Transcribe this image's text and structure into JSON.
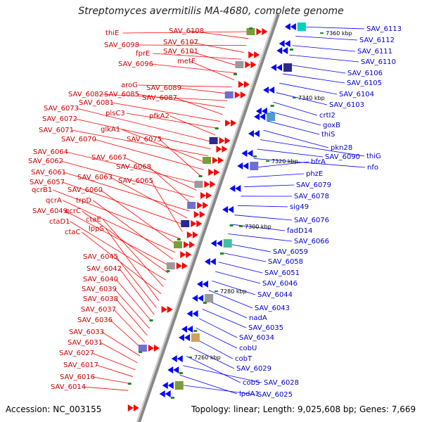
{
  "title": "Streptomyces avermitilis MA-4680, complete genome",
  "footer": {
    "accession": "Accession: NC_003155",
    "topology": "Topology: linear; Length: 9,025,608 bp; Genes: 7,669"
  },
  "scale_labels": [
    "7360 kbp",
    "7340 kbp",
    "7320 kbp",
    "7300 kbp",
    "7280 kbp",
    "7260 kbp"
  ],
  "left_labels": [
    "thiE",
    "SAV_6108",
    "SAV_6098",
    "SAV_6107",
    "fprE",
    "SAV_6101",
    "SAV_6096",
    "metF",
    "aroG",
    "SAV_6089",
    "SAV_6082",
    "SAV_6085",
    "SAV_6087",
    "SAV_6081",
    "plsC3",
    "pfkA2",
    "SAV_6073",
    "SAV_6072",
    "SAV_6071",
    "glkA1",
    "SAV_6070",
    "SAV_6075",
    "SAV_6064",
    "SAV_6067",
    "SAV_6062",
    "SAV_6068",
    "SAV_6061",
    "SAV_6063",
    "SAV_6057",
    "SAV_6065",
    "qcrB1",
    "SAV_6060",
    "qcrA",
    "trpD",
    "SAV_6049",
    "qcrC",
    "ctaD1",
    "ctaE",
    "ctaC",
    "lppS",
    "SAV_6045",
    "SAV_6042",
    "SAV_6040",
    "SAV_6039",
    "SAV_6038",
    "SAV_6037",
    "SAV_6036",
    "SAV_6033",
    "SAV_6031",
    "SAV_6027",
    "SAV_6017",
    "SAV_6016",
    "SAV_6014"
  ],
  "right_labels": [
    "SAV_6113",
    "SAV_6112",
    "SAV_6111",
    "SAV_6110",
    "SAV_6106",
    "SAV_6105",
    "SAV_6104",
    "SAV_6103",
    "crtI2",
    "goxB",
    "thiS",
    "pkn28",
    "thiG",
    "SAV_6090",
    "nfo",
    "bfrA",
    "phzE",
    "SAV_6079",
    "SAV_6078",
    "sig49",
    "SAV_6076",
    "fadD14",
    "SAV_6066",
    "SAV_6059",
    "SAV_6058",
    "SAV_6051",
    "SAV_6046",
    "SAV_6044",
    "SAV_6043",
    "nadA",
    "SAV_6035",
    "SAV_6034",
    "cobU",
    "cobT",
    "SAV_6029",
    "cobS",
    "SAV_6028",
    "lpdA1",
    "SAV_6025"
  ],
  "colors": {
    "forward_gene": "#ff0000",
    "reverse_gene": "#0000ff",
    "left_label": "#cc0000",
    "right_label": "#0000cc",
    "backbone": "#888888",
    "rna": "#228b22"
  }
}
